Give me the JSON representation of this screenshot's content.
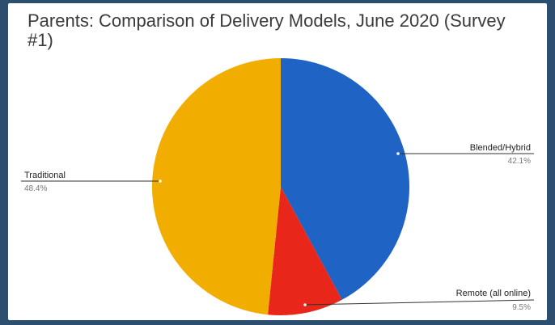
{
  "chart_data": {
    "type": "pie",
    "title": "Parents: Comparison of Delivery Models, June 2020 (Survey #1)",
    "slices": [
      {
        "label": "Blended/Hybrid",
        "value": 42.1,
        "display": "42.1%",
        "color": "#1f63c4"
      },
      {
        "label": "Remote (all online)",
        "value": 9.5,
        "display": "9.5%",
        "color": "#e8261a"
      },
      {
        "label": "Traditional",
        "value": 48.4,
        "display": "48.4%",
        "color": "#f2ae00"
      }
    ],
    "legend": "none",
    "labels": "outside-with-leader-lines"
  }
}
